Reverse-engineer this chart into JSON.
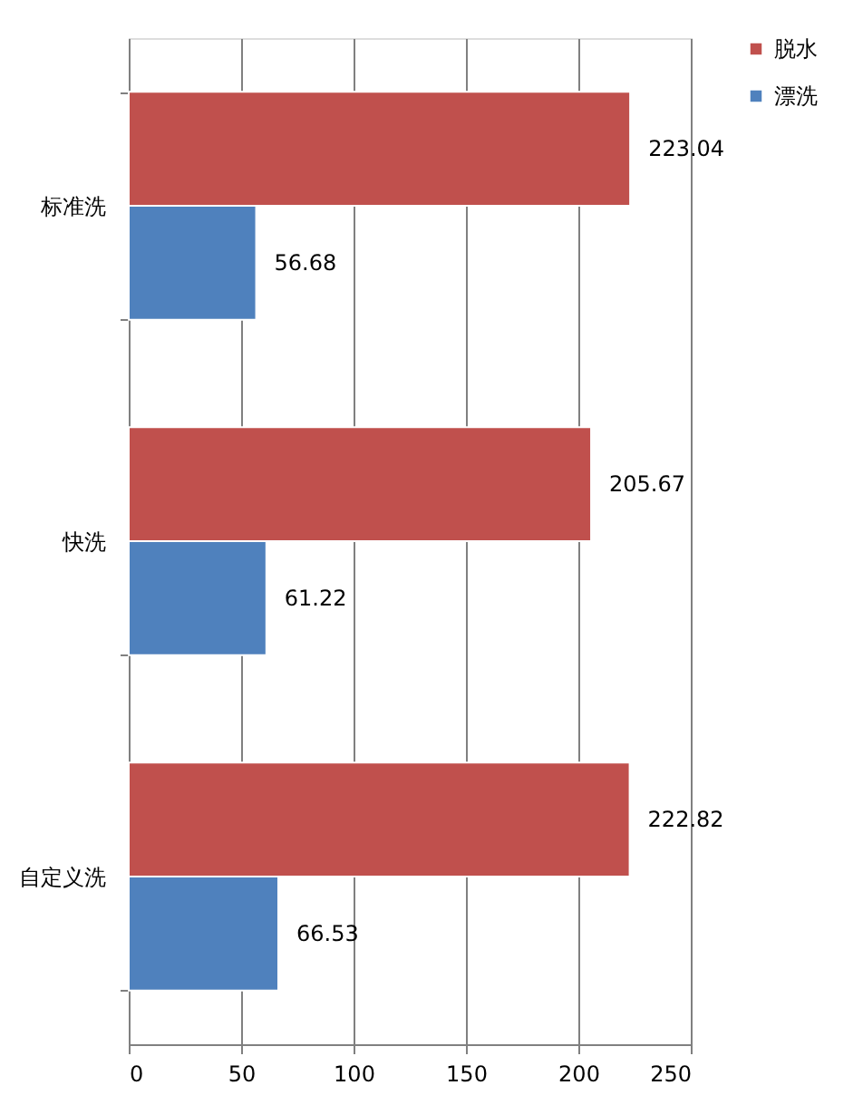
{
  "chart_data": {
    "type": "bar",
    "orientation": "horizontal",
    "categories": [
      "标准洗",
      "快洗",
      "自定义洗"
    ],
    "series": [
      {
        "name": "脱水",
        "color": "#c0504d",
        "values": [
          223.04,
          205.67,
          222.82
        ]
      },
      {
        "name": "漂洗",
        "color": "#4f81bd",
        "values": [
          56.68,
          61.22,
          66.53
        ]
      }
    ],
    "xlim": [
      0,
      250
    ],
    "xticks": [
      0,
      50,
      100,
      150,
      200,
      250
    ],
    "grid": "x",
    "legend": "right",
    "data_labels": true
  }
}
